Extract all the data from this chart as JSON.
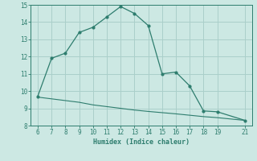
{
  "x_main": [
    6,
    7,
    8,
    9,
    10,
    11,
    12,
    13,
    14,
    15,
    16,
    17,
    18,
    19,
    21
  ],
  "y_main": [
    9.7,
    11.9,
    12.2,
    13.4,
    13.7,
    14.3,
    14.9,
    14.5,
    13.8,
    11.0,
    11.1,
    10.3,
    8.85,
    8.8,
    8.3
  ],
  "x_line2": [
    6,
    7,
    8,
    9,
    10,
    11,
    12,
    13,
    14,
    15,
    16,
    17,
    18,
    19,
    21
  ],
  "y_line2": [
    9.65,
    9.55,
    9.45,
    9.35,
    9.2,
    9.1,
    9.0,
    8.9,
    8.82,
    8.75,
    8.68,
    8.6,
    8.52,
    8.46,
    8.3
  ],
  "color": "#2e7d6e",
  "bg_color": "#cce8e3",
  "grid_color": "#aacfca",
  "xlim": [
    5.5,
    21.5
  ],
  "ylim": [
    8,
    15
  ],
  "yticks": [
    8,
    9,
    10,
    11,
    12,
    13,
    14,
    15
  ],
  "xticks": [
    6,
    7,
    8,
    9,
    10,
    11,
    12,
    13,
    14,
    15,
    16,
    17,
    18,
    19,
    21
  ],
  "xlabel": "Humidex (Indice chaleur)"
}
